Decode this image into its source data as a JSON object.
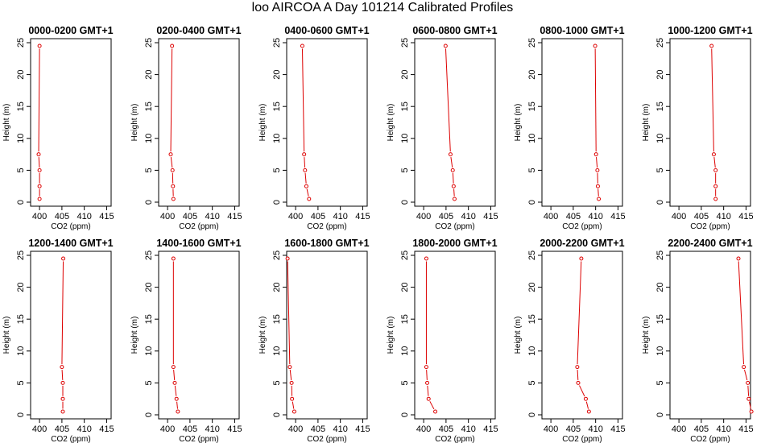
{
  "figure": {
    "title": "loo AIRCOA A  Day 101214  Calibrated Profiles"
  },
  "chart_data": [
    {
      "type": "line",
      "title": "0000-0200 GMT+1",
      "xlabel": "CO2 (ppm)",
      "ylabel": "Height (m)",
      "xlim": [
        398,
        416
      ],
      "ylim": [
        0,
        25
      ],
      "xticks": [
        400,
        405,
        410,
        415
      ],
      "yticks": [
        0,
        5,
        10,
        15,
        20,
        25
      ],
      "grid": false,
      "series": [
        {
          "color": "#dd0000",
          "points": [
            [
              400,
              0.5
            ],
            [
              400,
              2.5
            ],
            [
              400,
              5
            ],
            [
              399.8,
              7.5
            ],
            [
              400,
              24.5
            ]
          ]
        }
      ]
    },
    {
      "type": "line",
      "title": "0200-0400 GMT+1",
      "xlabel": "CO2 (ppm)",
      "ylabel": "Height (m)",
      "xlim": [
        398,
        416
      ],
      "ylim": [
        0,
        25
      ],
      "xticks": [
        400,
        405,
        410,
        415
      ],
      "yticks": [
        0,
        5,
        10,
        15,
        20,
        25
      ],
      "grid": false,
      "series": [
        {
          "color": "#dd0000",
          "points": [
            [
              401.3,
              0.5
            ],
            [
              401.2,
              2.5
            ],
            [
              401.1,
              5
            ],
            [
              400.7,
              7.5
            ],
            [
              401,
              24.5
            ]
          ]
        }
      ]
    },
    {
      "type": "line",
      "title": "0400-0600 GMT+1",
      "xlabel": "CO2 (ppm)",
      "ylabel": "Height (m)",
      "xlim": [
        398,
        416
      ],
      "ylim": [
        0,
        25
      ],
      "xticks": [
        400,
        405,
        410,
        415
      ],
      "yticks": [
        0,
        5,
        10,
        15,
        20,
        25
      ],
      "grid": false,
      "series": [
        {
          "color": "#dd0000",
          "points": [
            [
              403,
              0.5
            ],
            [
              402.4,
              2.5
            ],
            [
              402.1,
              5
            ],
            [
              401.9,
              7.5
            ],
            [
              401.5,
              24.5
            ]
          ]
        }
      ]
    },
    {
      "type": "line",
      "title": "0600-0800 GMT+1",
      "xlabel": "CO2 (ppm)",
      "ylabel": "Height (m)",
      "xlim": [
        398,
        416
      ],
      "ylim": [
        0,
        25
      ],
      "xticks": [
        400,
        405,
        410,
        415
      ],
      "yticks": [
        0,
        5,
        10,
        15,
        20,
        25
      ],
      "grid": false,
      "series": [
        {
          "color": "#dd0000",
          "points": [
            [
              406.9,
              0.5
            ],
            [
              406.7,
              2.5
            ],
            [
              406.5,
              5
            ],
            [
              406,
              7.5
            ],
            [
              404.9,
              24.5
            ]
          ]
        }
      ]
    },
    {
      "type": "line",
      "title": "0800-1000 GMT+1",
      "xlabel": "CO2 (ppm)",
      "ylabel": "Height (m)",
      "xlim": [
        398,
        416
      ],
      "ylim": [
        0,
        25
      ],
      "xticks": [
        400,
        405,
        410,
        415
      ],
      "yticks": [
        0,
        5,
        10,
        15,
        20,
        25
      ],
      "grid": false,
      "series": [
        {
          "color": "#dd0000",
          "points": [
            [
              410.7,
              0.5
            ],
            [
              410.5,
              2.5
            ],
            [
              410.4,
              5
            ],
            [
              410.1,
              7.5
            ],
            [
              409.9,
              24.5
            ]
          ]
        }
      ]
    },
    {
      "type": "line",
      "title": "1000-1200 GMT+1",
      "xlabel": "CO2 (ppm)",
      "ylabel": "Height (m)",
      "xlim": [
        398,
        416
      ],
      "ylim": [
        0,
        25
      ],
      "xticks": [
        400,
        405,
        410,
        415
      ],
      "yticks": [
        0,
        5,
        10,
        15,
        20,
        25
      ],
      "grid": false,
      "series": [
        {
          "color": "#dd0000",
          "points": [
            [
              408.2,
              0.5
            ],
            [
              408.2,
              2.5
            ],
            [
              408.2,
              5
            ],
            [
              407.8,
              7.5
            ],
            [
              407.3,
              24.5
            ]
          ]
        }
      ]
    },
    {
      "type": "line",
      "title": "1200-1400 GMT+1",
      "xlabel": "CO2 (ppm)",
      "ylabel": "Height (m)",
      "xlim": [
        398,
        416
      ],
      "ylim": [
        0,
        25
      ],
      "xticks": [
        400,
        405,
        410,
        415
      ],
      "yticks": [
        0,
        5,
        10,
        15,
        20,
        25
      ],
      "grid": false,
      "series": [
        {
          "color": "#dd0000",
          "points": [
            [
              405.2,
              0.5
            ],
            [
              405.2,
              2.5
            ],
            [
              405.2,
              5
            ],
            [
              405,
              7.5
            ],
            [
              405.3,
              24.5
            ]
          ]
        }
      ]
    },
    {
      "type": "line",
      "title": "1400-1600 GMT+1",
      "xlabel": "CO2 (ppm)",
      "ylabel": "Height (m)",
      "xlim": [
        398,
        416
      ],
      "ylim": [
        0,
        25
      ],
      "xticks": [
        400,
        405,
        410,
        415
      ],
      "yticks": [
        0,
        5,
        10,
        15,
        20,
        25
      ],
      "grid": false,
      "series": [
        {
          "color": "#dd0000",
          "points": [
            [
              402.3,
              0.5
            ],
            [
              402,
              2.5
            ],
            [
              401.6,
              5
            ],
            [
              401.3,
              7.5
            ],
            [
              401.3,
              24.5
            ]
          ]
        }
      ]
    },
    {
      "type": "line",
      "title": "1600-1800 GMT+1",
      "xlabel": "CO2 (ppm)",
      "ylabel": "Height (m)",
      "xlim": [
        398,
        416
      ],
      "ylim": [
        0,
        25
      ],
      "xticks": [
        400,
        405,
        410,
        415
      ],
      "yticks": [
        0,
        5,
        10,
        15,
        20,
        25
      ],
      "grid": false,
      "series": [
        {
          "color": "#dd0000",
          "points": [
            [
              399.7,
              0.5
            ],
            [
              399.2,
              2.5
            ],
            [
              399.1,
              5
            ],
            [
              398.7,
              7.5
            ],
            [
              398.2,
              24.5
            ]
          ]
        }
      ]
    },
    {
      "type": "line",
      "title": "1800-2000 GMT+1",
      "xlabel": "CO2 (ppm)",
      "ylabel": "Height (m)",
      "xlim": [
        398,
        416
      ],
      "ylim": [
        0,
        25
      ],
      "xticks": [
        400,
        405,
        410,
        415
      ],
      "yticks": [
        0,
        5,
        10,
        15,
        20,
        25
      ],
      "grid": false,
      "series": [
        {
          "color": "#dd0000",
          "points": [
            [
              402.6,
              0.5
            ],
            [
              401.1,
              2.5
            ],
            [
              400.8,
              5
            ],
            [
              400.6,
              7.5
            ],
            [
              400.6,
              24.5
            ]
          ]
        }
      ]
    },
    {
      "type": "line",
      "title": "2000-2200 GMT+1",
      "xlabel": "CO2 (ppm)",
      "ylabel": "Height (m)",
      "xlim": [
        398,
        416
      ],
      "ylim": [
        0,
        25
      ],
      "xticks": [
        400,
        405,
        410,
        415
      ],
      "yticks": [
        0,
        5,
        10,
        15,
        20,
        25
      ],
      "grid": false,
      "series": [
        {
          "color": "#dd0000",
          "points": [
            [
              408.5,
              0.5
            ],
            [
              407.8,
              2.5
            ],
            [
              406.1,
              5
            ],
            [
              405.9,
              7.5
            ],
            [
              406.8,
              24.5
            ]
          ]
        }
      ]
    },
    {
      "type": "line",
      "title": "2200-2400 GMT+1",
      "xlabel": "CO2 (ppm)",
      "ylabel": "Height (m)",
      "xlim": [
        398,
        416
      ],
      "ylim": [
        0,
        25
      ],
      "xticks": [
        400,
        405,
        410,
        415
      ],
      "yticks": [
        0,
        5,
        10,
        15,
        20,
        25
      ],
      "grid": false,
      "series": [
        {
          "color": "#dd0000",
          "points": [
            [
              416.2,
              0.5
            ],
            [
              415.6,
              2.5
            ],
            [
              415.4,
              5
            ],
            [
              414.5,
              7.5
            ],
            [
              413.3,
              24.5
            ]
          ]
        }
      ]
    }
  ]
}
